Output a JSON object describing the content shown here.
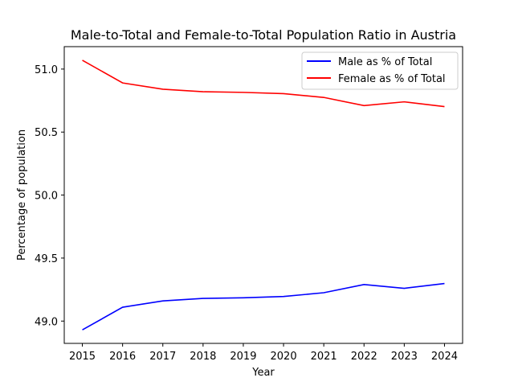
{
  "chart_data": {
    "type": "line",
    "title": "Male-to-Total and Female-to-Total Population Ratio in Austria",
    "xlabel": "Year",
    "ylabel": "Percentage of population",
    "x": [
      2015,
      2016,
      2017,
      2018,
      2019,
      2020,
      2021,
      2022,
      2023,
      2024
    ],
    "xticks": [
      "2015",
      "2016",
      "2017",
      "2018",
      "2019",
      "2020",
      "2021",
      "2022",
      "2023",
      "2024"
    ],
    "yticks": [
      "49.0",
      "49.5",
      "50.0",
      "50.5",
      "51.0"
    ],
    "ytick_values": [
      49.0,
      49.5,
      50.0,
      50.5,
      51.0
    ],
    "xlim": [
      2014.55,
      2024.45
    ],
    "ylim": [
      48.823,
      51.178
    ],
    "grid": false,
    "legend_position": "top-right",
    "series": [
      {
        "name": "Male as % of Total",
        "color": "#0000ff",
        "values": [
          48.93,
          49.11,
          49.16,
          49.18,
          49.185,
          49.195,
          49.225,
          49.29,
          49.26,
          49.298
        ]
      },
      {
        "name": "Female as % of Total",
        "color": "#ff0000",
        "values": [
          51.07,
          50.89,
          50.84,
          50.82,
          50.815,
          50.805,
          50.775,
          50.71,
          50.74,
          50.702
        ]
      }
    ]
  }
}
